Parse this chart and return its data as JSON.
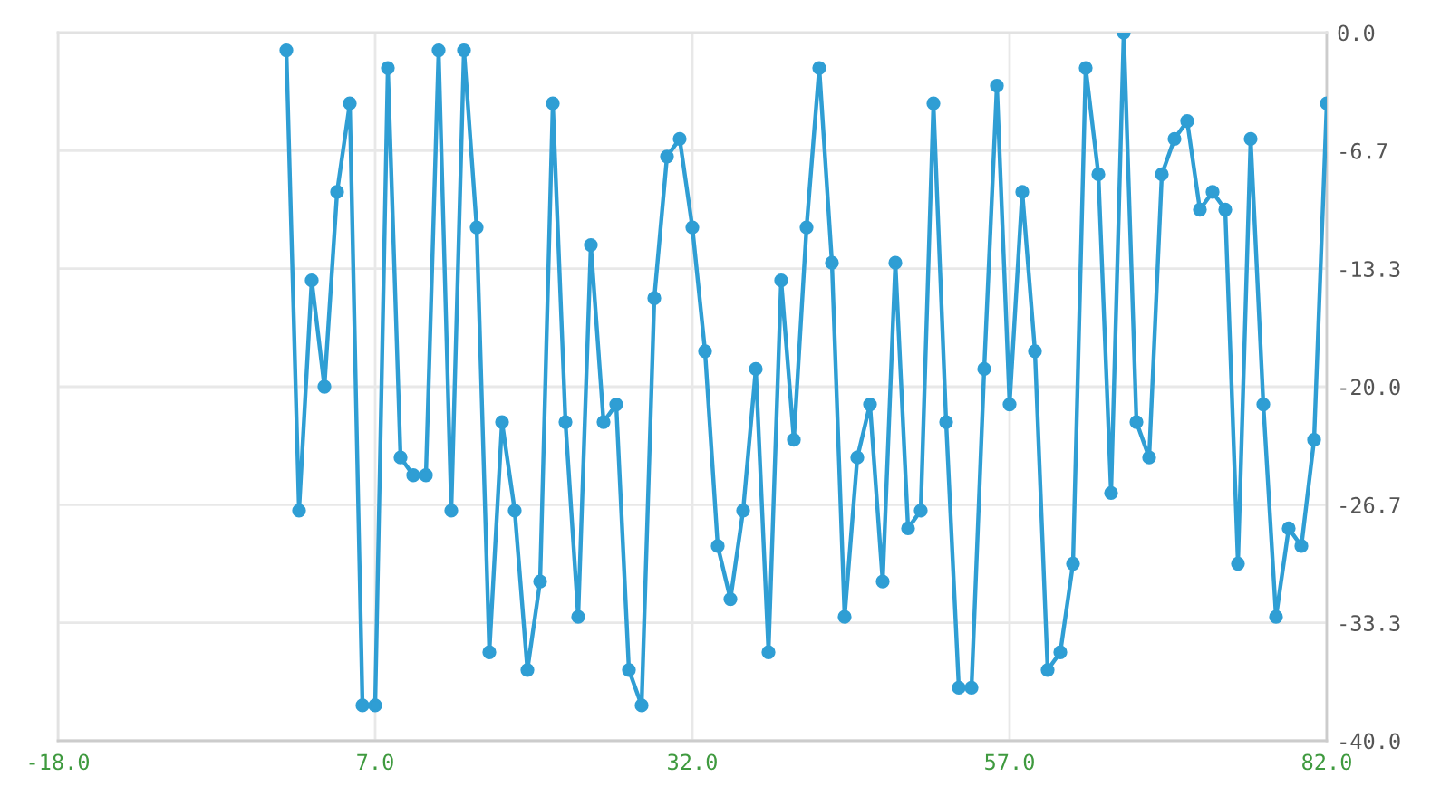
{
  "chart_data": {
    "type": "line",
    "x": [
      0,
      1,
      2,
      3,
      4,
      5,
      6,
      7,
      8,
      9,
      10,
      11,
      12,
      13,
      14,
      15,
      16,
      17,
      18,
      19,
      20,
      21,
      22,
      23,
      24,
      25,
      26,
      27,
      28,
      29,
      30,
      31,
      32,
      33,
      34,
      35,
      36,
      37,
      38,
      39,
      40,
      41,
      42,
      43,
      44,
      45,
      46,
      47,
      48,
      49,
      50,
      51,
      52,
      53,
      54,
      55,
      56,
      57,
      58,
      59,
      60,
      61,
      62,
      63,
      64,
      65,
      66,
      67,
      68,
      69,
      70,
      71,
      72,
      73,
      74,
      75,
      76,
      77,
      78,
      79,
      80,
      81,
      82
    ],
    "series": [
      {
        "color": "#2f9ed4",
        "values": [
          -1,
          -27,
          -14,
          -20,
          -9,
          -4,
          -38,
          -38,
          -2,
          -24,
          -25,
          -25,
          -1,
          -27,
          -1,
          -11,
          -35,
          -22,
          -27,
          -36,
          -31,
          -4,
          -22,
          -33,
          -12,
          -22,
          -21,
          -36,
          -38,
          -15,
          -7,
          -6,
          -11,
          -18,
          -29,
          -32,
          -27,
          -19,
          -35,
          -14,
          -23,
          -11,
          -2,
          -13,
          -33,
          -24,
          -21,
          -31,
          -13,
          -28,
          -27,
          -4,
          -22,
          -37,
          -37,
          -19,
          -3,
          -21,
          -9,
          -18,
          -36,
          -35,
          -30,
          -2,
          -8,
          -26,
          0,
          -22,
          -24,
          -8,
          -6,
          -5,
          -10,
          -9,
          -10,
          -30,
          -6,
          -21,
          -33,
          -28,
          -29,
          -23,
          -4
        ]
      }
    ],
    "xlim": [
      -18,
      82
    ],
    "xticks": [
      {
        "value": -18,
        "label": "-18.0"
      },
      {
        "value": 7,
        "label": "7.0"
      },
      {
        "value": 32,
        "label": "32.0"
      },
      {
        "value": 57,
        "label": "57.0"
      },
      {
        "value": 82,
        "label": "82.0"
      }
    ],
    "ylim": [
      -40,
      0
    ],
    "yticks": [
      {
        "value": 0,
        "label": "0.0"
      },
      {
        "value": -6.667,
        "label": "-6.7"
      },
      {
        "value": -13.333,
        "label": "-13.3"
      },
      {
        "value": -20,
        "label": "-20.0"
      },
      {
        "value": -26.667,
        "label": "-26.7"
      },
      {
        "value": -33.333,
        "label": "-33.3"
      },
      {
        "value": -40,
        "label": "-40.0"
      }
    ],
    "grid": true,
    "marker": "circle",
    "line_style": "solid"
  }
}
